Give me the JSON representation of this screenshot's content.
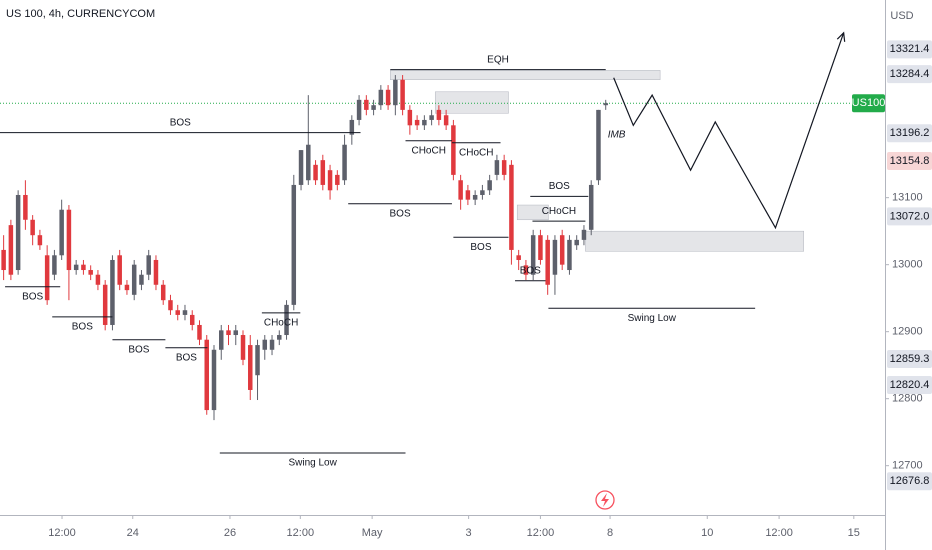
{
  "chart_data": {
    "type": "candlestick",
    "title": "US 100, 4h, CURRENCYCOM",
    "y_axis_unit": "USD",
    "up_color": "#5d606b",
    "down_color": "#e0393e",
    "xlim": [
      -0.5,
      121.5
    ],
    "ylim": [
      12626.4,
      13395
    ],
    "xticks": [
      {
        "value": 8.05,
        "label": "12:00"
      },
      {
        "value": 17.8,
        "label": "24"
      },
      {
        "value": 31.2,
        "label": "26"
      },
      {
        "value": 40.9,
        "label": "12:00"
      },
      {
        "value": 50.8,
        "label": "May"
      },
      {
        "value": 64.1,
        "label": "3"
      },
      {
        "value": 74.0,
        "label": "12:00"
      },
      {
        "value": 83.6,
        "label": "8"
      },
      {
        "value": 97.0,
        "label": "10"
      },
      {
        "value": 106.9,
        "label": "12:00"
      },
      {
        "value": 117.2,
        "label": "15"
      }
    ],
    "yticks": [
      12700,
      12800,
      12900,
      13000,
      13100
    ],
    "candles": [
      [
        13022,
        13044,
        12977,
        12992
      ],
      [
        13059,
        13067,
        12977,
        12985
      ],
      [
        12992,
        13111,
        12985,
        13104
      ],
      [
        13104,
        13126,
        13052,
        13067
      ],
      [
        13067,
        13074,
        13029,
        13044
      ],
      [
        13044,
        13052,
        13022,
        13029
      ],
      [
        13014,
        13029,
        12940,
        12947
      ],
      [
        12985,
        13022,
        12977,
        13014
      ],
      [
        13014,
        13097,
        13007,
        13082
      ],
      [
        13082,
        13089,
        12947,
        12992
      ],
      [
        12992,
        13007,
        12985,
        13000
      ],
      [
        13000,
        13007,
        12985,
        12992
      ],
      [
        12992,
        12999,
        12977,
        12985
      ],
      [
        12985,
        12992,
        12962,
        12970
      ],
      [
        12970,
        12977,
        12902,
        12910
      ],
      [
        12910,
        13014,
        12902,
        13007
      ],
      [
        13014,
        13022,
        12962,
        12970
      ],
      [
        12970,
        12977,
        12955,
        12962
      ],
      [
        12955,
        13007,
        12947,
        13000
      ],
      [
        12970,
        12992,
        12962,
        12985
      ],
      [
        12985,
        13022,
        12977,
        13014
      ],
      [
        13007,
        13014,
        12962,
        12970
      ],
      [
        12970,
        12977,
        12940,
        12947
      ],
      [
        12947,
        12955,
        12925,
        12932
      ],
      [
        12932,
        12940,
        12917,
        12925
      ],
      [
        12925,
        12940,
        12917,
        12932
      ],
      [
        12925,
        12932,
        12902,
        12910
      ],
      [
        12910,
        12917,
        12880,
        12888
      ],
      [
        12888,
        12895,
        12776,
        12783
      ],
      [
        12783,
        12880,
        12768,
        12873
      ],
      [
        12873,
        12910,
        12858,
        12902
      ],
      [
        12902,
        12910,
        12880,
        12895
      ],
      [
        12895,
        12910,
        12880,
        12902
      ],
      [
        12895,
        12902,
        12850,
        12858
      ],
      [
        12880,
        12895,
        12798,
        12813
      ],
      [
        12835,
        12888,
        12798,
        12880
      ],
      [
        12873,
        12895,
        12858,
        12888
      ],
      [
        12873,
        12895,
        12865,
        12888
      ],
      [
        12888,
        12902,
        12880,
        12895
      ],
      [
        12895,
        12947,
        12888,
        12940
      ],
      [
        12940,
        13134,
        12932,
        13119
      ],
      [
        13119,
        13171,
        13111,
        13171
      ],
      [
        13126,
        13253,
        13119,
        13179
      ],
      [
        13149,
        13156,
        13119,
        13126
      ],
      [
        13156,
        13164,
        13111,
        13119
      ],
      [
        13141,
        13149,
        13097,
        13111
      ],
      [
        13134,
        13141,
        13111,
        13119
      ],
      [
        13126,
        13194,
        13119,
        13179
      ],
      [
        13194,
        13223,
        13179,
        13216
      ],
      [
        13216,
        13253,
        13208,
        13246
      ],
      [
        13246,
        13253,
        13223,
        13231
      ],
      [
        13231,
        13246,
        13223,
        13238
      ],
      [
        13238,
        13268,
        13231,
        13261
      ],
      [
        13261,
        13268,
        13231,
        13238
      ],
      [
        13238,
        13283,
        13223,
        13276
      ],
      [
        13276,
        13283,
        13223,
        13231
      ],
      [
        13231,
        13238,
        13194,
        13208
      ],
      [
        13216,
        13223,
        13201,
        13208
      ],
      [
        13208,
        13223,
        13201,
        13216
      ],
      [
        13216,
        13231,
        13208,
        13223
      ],
      [
        13231,
        13238,
        13208,
        13216
      ],
      [
        13223,
        13231,
        13201,
        13208
      ],
      [
        13208,
        13216,
        13126,
        13134
      ],
      [
        13126,
        13134,
        13082,
        13097
      ],
      [
        13111,
        13119,
        13089,
        13097
      ],
      [
        13097,
        13111,
        13089,
        13104
      ],
      [
        13104,
        13119,
        13097,
        13111
      ],
      [
        13111,
        13134,
        13104,
        13126
      ],
      [
        13134,
        13164,
        13126,
        13156
      ],
      [
        13156,
        13164,
        13126,
        13134
      ],
      [
        13149,
        13156,
        13000,
        13022
      ],
      [
        13014,
        13022,
        12992,
        13007
      ],
      [
        12999,
        13007,
        12977,
        12985
      ],
      [
        12985,
        13052,
        12977,
        13044
      ],
      [
        13044,
        13052,
        13000,
        13007
      ],
      [
        13037,
        13044,
        12955,
        12970
      ],
      [
        12985,
        13044,
        12955,
        13037
      ],
      [
        13044,
        13052,
        12992,
        13000
      ],
      [
        12992,
        13044,
        12985,
        13037
      ],
      [
        13029,
        13044,
        13022,
        13037
      ],
      [
        13037,
        13059,
        13029,
        13052
      ],
      [
        13052,
        13126,
        13044,
        13119
      ],
      [
        13126,
        13231,
        13119,
        13231
      ],
      [
        13238,
        13246,
        13231,
        13241
      ]
    ],
    "zones": [
      {
        "from": 53.3,
        "to": 90.5,
        "top": 13290,
        "bottom": 13276
      },
      {
        "from": 59.5,
        "to": 69.6,
        "top": 13258,
        "bottom": 13226
      },
      {
        "from": 80.2,
        "to": 110.3,
        "top": 13050,
        "bottom": 13020
      },
      {
        "from": 70.8,
        "to": 75.1,
        "top": 13089,
        "bottom": 13067
      }
    ],
    "levels": [
      {
        "label": "BOS",
        "price": 13197,
        "from": -0.5,
        "to": 49.2,
        "side": "above"
      },
      {
        "label": "BOS",
        "price": 12967,
        "from": 0.2,
        "to": 7.8,
        "side": "below"
      },
      {
        "label": "BOS",
        "price": 12922,
        "from": 6.7,
        "to": 15.0,
        "side": "below"
      },
      {
        "label": "BOS",
        "price": 12888,
        "from": 15.0,
        "to": 22.3,
        "side": "below"
      },
      {
        "label": "BOS",
        "price": 12876,
        "from": 22.3,
        "to": 28.1,
        "side": "below"
      },
      {
        "label": "CHoCH",
        "price": 12928,
        "from": 35.6,
        "to": 40.9,
        "side": "below"
      },
      {
        "label": "Swing Low",
        "price": 12719,
        "from": 29.8,
        "to": 55.4,
        "side": "below"
      },
      {
        "label": "BOS",
        "price": 13091,
        "from": 47.5,
        "to": 61.8,
        "side": "below"
      },
      {
        "label": "EQH",
        "price": 13291,
        "from": 53.3,
        "to": 83.0,
        "side": "above"
      },
      {
        "label": "CHoCH",
        "price": 13185,
        "from": 55.4,
        "to": 61.8,
        "side": "below"
      },
      {
        "label": "CHoCH",
        "price": 13182,
        "from": 61.8,
        "to": 68.5,
        "side": "below"
      },
      {
        "label": "BOS",
        "price": 13041,
        "from": 62.0,
        "to": 69.6,
        "side": "below"
      },
      {
        "label": "BOS",
        "price": 13102,
        "from": 72.6,
        "to": 80.6,
        "side": "above"
      },
      {
        "label": "CHoCH",
        "price": 13065,
        "from": 72.9,
        "to": 80.2,
        "side": "above"
      },
      {
        "label": "BOS",
        "price": 12976,
        "from": 70.5,
        "to": 74.7,
        "side": "above"
      },
      {
        "label": "Swing Low",
        "price": 12935,
        "from": 75.1,
        "to": 103.6,
        "side": "below"
      }
    ],
    "notes": [
      {
        "label": "IMB",
        "at": 84.5,
        "price": 13194
      }
    ],
    "projection": {
      "x": [
        84.1,
        86.8,
        89.4,
        94.7,
        98.1,
        106.4,
        115.8
      ],
      "y": [
        13279,
        13208,
        13253,
        13141,
        13213,
        13055,
        13346
      ]
    },
    "price_tags": [
      {
        "value": 13321.4,
        "label": "13321.4",
        "color": "#e0e3eb"
      },
      {
        "value": 13284.4,
        "label": "13284.4",
        "color": "#e0e3eb"
      },
      {
        "value": 13241,
        "label": "US100",
        "color": "#22ab4a",
        "line": true
      },
      {
        "value": 13196.2,
        "label": "13196.2",
        "color": "#e0e3eb"
      },
      {
        "value": 13154.8,
        "label": "13154.8",
        "color": "#f7d6d6"
      },
      {
        "value": 13072.0,
        "label": "13072.0",
        "color": "#e0e3eb"
      },
      {
        "value": 12859.3,
        "label": "12859.3",
        "color": "#e0e3eb"
      },
      {
        "value": 12820.4,
        "label": "12820.4",
        "color": "#e0e3eb"
      },
      {
        "value": 12676.8,
        "label": "12676.8",
        "color": "#e0e3eb"
      }
    ]
  }
}
